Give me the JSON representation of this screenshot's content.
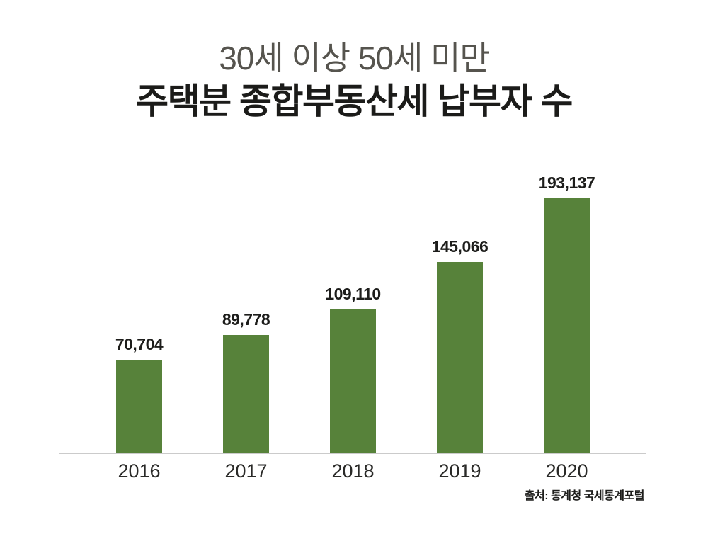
{
  "title": {
    "line1": "30세 이상 50세 미만",
    "line2": "주택분 종합부동산세 납부자 수"
  },
  "source": "출처: 통계청 국세통계포털",
  "colors": {
    "bar": "#57823A",
    "axis": "#CBCBCB",
    "title_sub": "#56544E",
    "title_main": "#1B1B19",
    "label": "#1D1D1B"
  },
  "chart_data": {
    "type": "bar",
    "title": "30세 이상 50세 미만 주택분 종합부동산세 납부자 수",
    "categories": [
      "2016",
      "2017",
      "2018",
      "2019",
      "2020"
    ],
    "values": [
      70704,
      89778,
      109110,
      145066,
      193137
    ],
    "value_labels": [
      "70,704",
      "89,778",
      "109,110",
      "145,066",
      "193,137"
    ],
    "xlabel": "",
    "ylabel": "",
    "ylim": [
      0,
      193137
    ],
    "grid": false,
    "legend": false,
    "bar_color": "#57823A",
    "source": "출처: 통계청 국세통계포털"
  }
}
